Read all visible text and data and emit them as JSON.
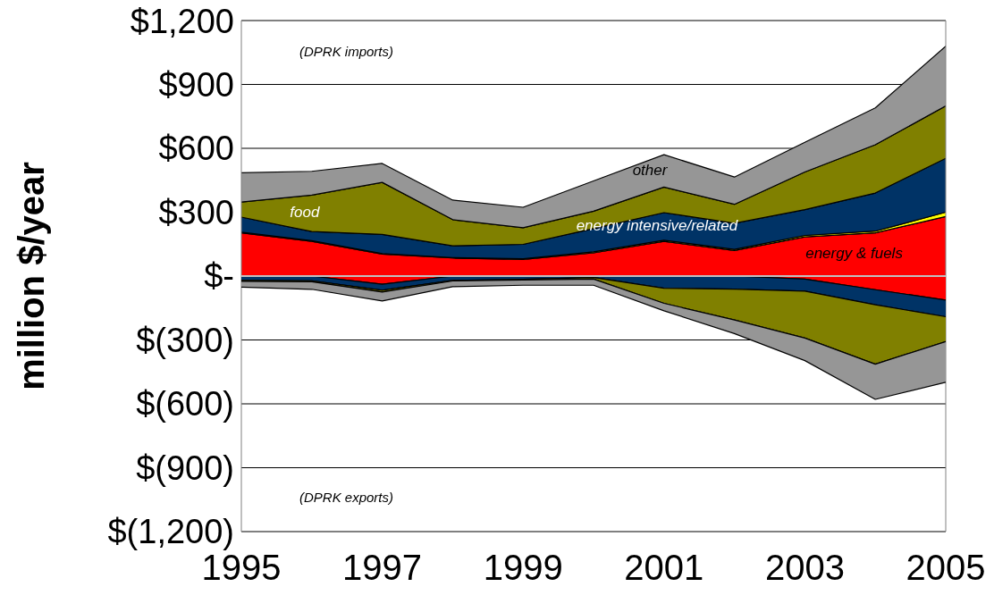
{
  "chart_data": [
    {
      "type": "area",
      "stacked": true,
      "ylabel": "million $/year",
      "annotations": [
        "(DPRK imports)"
      ],
      "x": [
        1995,
        1996,
        1997,
        1998,
        1999,
        2000,
        2001,
        2002,
        2003,
        2004,
        2005
      ],
      "xlim": [
        1995,
        2005
      ],
      "xticks": [
        1995,
        1997,
        1999,
        2001,
        2003,
        2005
      ],
      "ylim": [
        -1200,
        1200
      ],
      "yticks": [
        {
          "value": -1200,
          "label": "$(1,200)"
        },
        {
          "value": -900,
          "label": "$(900)"
        },
        {
          "value": -600,
          "label": "$(600)"
        },
        {
          "value": -300,
          "label": "$(300)"
        },
        {
          "value": 0,
          "label": "$-"
        },
        {
          "value": 300,
          "label": "$300"
        },
        {
          "value": 600,
          "label": "$600"
        },
        {
          "value": 900,
          "label": "$900"
        },
        {
          "value": 1200,
          "label": "$1,200"
        }
      ],
      "grid": "y",
      "series": [
        {
          "name": "energy & fuels",
          "color": "#ff0000",
          "values": [
            203,
            163,
            103,
            85,
            78,
            109,
            163,
            120,
            184,
            203,
            280
          ]
        },
        {
          "color": "#ffff00",
          "values": [
            3,
            3,
            3,
            2,
            3,
            5,
            5,
            5,
            7,
            8,
            20
          ]
        },
        {
          "name": "energy intensive/related",
          "color": "#003366",
          "values": [
            71,
            43,
            90,
            55,
            68,
            109,
            130,
            123,
            121,
            179,
            253
          ]
        },
        {
          "name": "food",
          "color": "#808000",
          "values": [
            71,
            171,
            244,
            123,
            78,
            82,
            120,
            89,
            177,
            227,
            246
          ]
        },
        {
          "name": "other",
          "color": "#969696",
          "values": [
            137,
            112,
            89,
            92,
            96,
            142,
            152,
            128,
            139,
            173,
            281
          ]
        }
      ]
    },
    {
      "type": "area",
      "stacked": true,
      "annotations": [
        "(DPRK exports)"
      ],
      "x": [
        1995,
        1996,
        1997,
        1998,
        1999,
        2000,
        2001,
        2002,
        2003,
        2004,
        2005
      ],
      "xlim": [
        1995,
        2005
      ],
      "ylim": [
        -1200,
        1200
      ],
      "series": [
        {
          "color": "#ff0000",
          "values": [
            0,
            0,
            -38,
            0,
            0,
            0,
            0,
            0,
            -14,
            -64,
            -113
          ]
        },
        {
          "color": "#003366",
          "values": [
            -20,
            -22,
            -29,
            -20,
            -15,
            -7,
            -57,
            -61,
            -57,
            -71,
            -78
          ]
        },
        {
          "color": "#808000",
          "values": [
            -5,
            -5,
            -8,
            -3,
            -3,
            -7,
            -71,
            -145,
            -220,
            -279,
            -117
          ]
        },
        {
          "color": "#969696",
          "values": [
            -27,
            -35,
            -42,
            -27,
            -25,
            -29,
            -35,
            -64,
            -106,
            -165,
            -191
          ]
        }
      ]
    }
  ]
}
